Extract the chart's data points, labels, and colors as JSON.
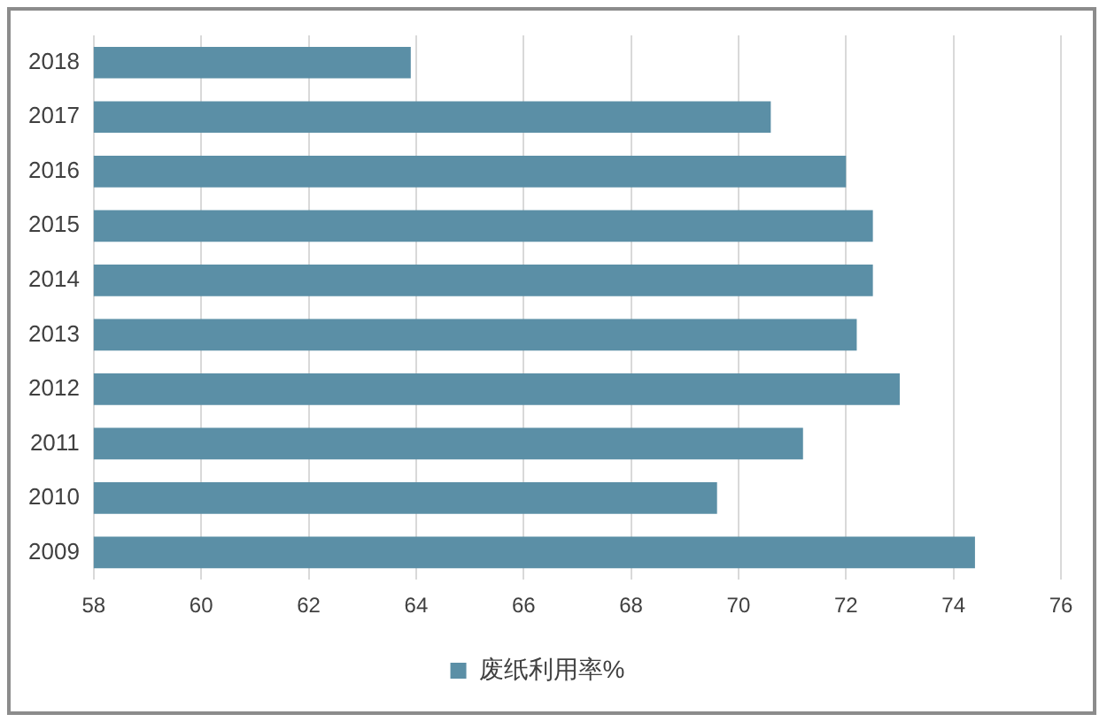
{
  "chart_data": {
    "type": "bar",
    "orientation": "horizontal",
    "categories": [
      "2018",
      "2017",
      "2016",
      "2015",
      "2014",
      "2013",
      "2012",
      "2011",
      "2010",
      "2009"
    ],
    "series": [
      {
        "name": "废纸利用率%",
        "color": "#5b8fa6",
        "values": [
          63.9,
          70.6,
          72.0,
          72.5,
          72.5,
          72.2,
          73.0,
          71.2,
          69.6,
          74.4
        ]
      }
    ],
    "xlim": [
      58,
      76
    ],
    "xticks": [
      58,
      60,
      62,
      64,
      66,
      68,
      70,
      72,
      74,
      76
    ],
    "grid": "x",
    "legend": "bottom"
  }
}
